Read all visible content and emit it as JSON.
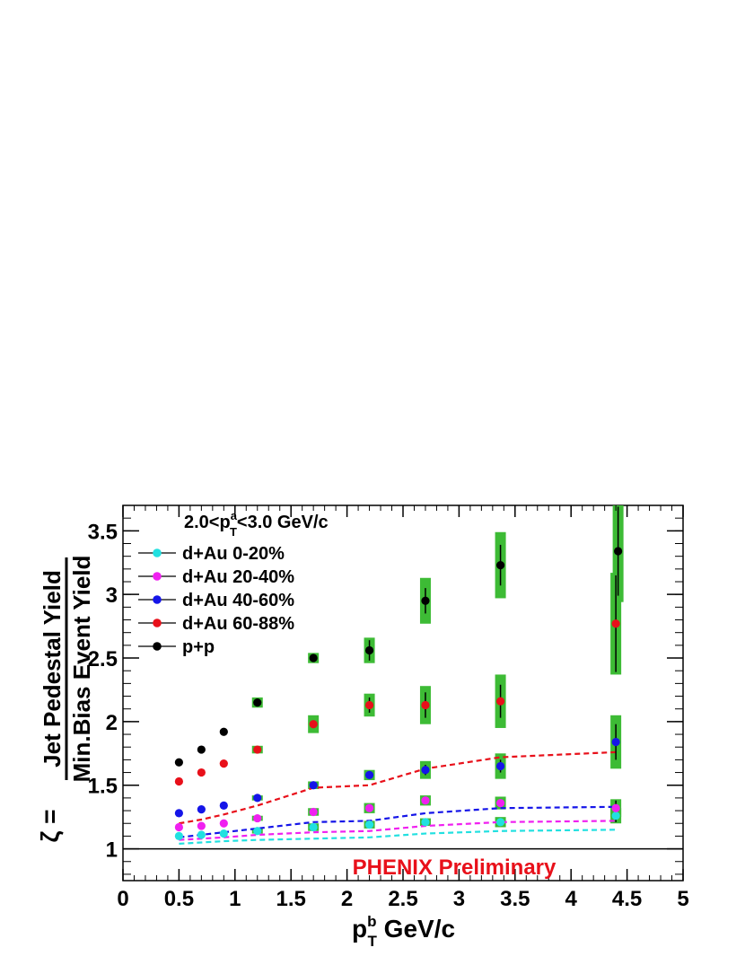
{
  "chart_data": {
    "type": "scatter",
    "title": "2.0<p_T^a<3.0 GeV/c",
    "title_parts": {
      "p": "2.0<p",
      "sup": "a",
      "sub": "T",
      "rest": "<3.0 GeV/c"
    },
    "xlabel": "p_T^b GeV/c",
    "xlabel_parts": {
      "p": "p",
      "sup": "b",
      "sub": "T",
      "rest": " GeV/c"
    },
    "ylabel": "ζ = Jet Pedestal Yield / Min.Bias Event Yield",
    "ylabel_parts": {
      "zeta": "ζ =",
      "numerator": "Jet Pedestal Yield",
      "denominator": "Min.Bias Event Yield"
    },
    "xlim": [
      0,
      5
    ],
    "ylim": [
      0.75,
      3.7
    ],
    "x_ticks": [
      "0",
      "0.5",
      "1",
      "1.5",
      "2",
      "2.5",
      "3",
      "3.5",
      "4",
      "4.5",
      "5"
    ],
    "y_ticks": [
      "1",
      "1.5",
      "2",
      "2.5",
      "3",
      "3.5"
    ],
    "reference_line_y": 1,
    "annotation": "PHENIX Preliminary",
    "legend_position": "top-left",
    "grid": false,
    "colors": {
      "systematic_box": "#3dbb35",
      "annotation": "#e8101a"
    },
    "series": [
      {
        "name": "d+Au 0-20%",
        "color": "#22e0e0",
        "x": [
          0.5,
          0.7,
          0.9,
          1.2,
          1.7,
          2.2,
          2.7,
          3.37,
          4.4
        ],
        "y": [
          1.1,
          1.11,
          1.12,
          1.14,
          1.17,
          1.19,
          1.21,
          1.21,
          1.26
        ],
        "err": [
          0.01,
          0.01,
          0.01,
          0.01,
          0.01,
          0.01,
          0.02,
          0.02,
          0.05
        ],
        "sys": [
          0,
          0,
          0,
          0.02,
          0.03,
          0.03,
          0.03,
          0.04,
          0.06
        ],
        "curve_y": [
          1.04,
          1.05,
          1.06,
          1.07,
          1.08,
          1.09,
          1.12,
          1.14,
          1.15
        ]
      },
      {
        "name": "d+Au 20-40%",
        "color": "#f020f0",
        "x": [
          0.5,
          0.7,
          0.9,
          1.2,
          1.7,
          2.2,
          2.7,
          3.37,
          4.4
        ],
        "y": [
          1.17,
          1.18,
          1.2,
          1.24,
          1.29,
          1.32,
          1.38,
          1.36,
          1.32
        ],
        "err": [
          0.01,
          0.01,
          0.01,
          0.01,
          0.01,
          0.02,
          0.02,
          0.03,
          0.06
        ],
        "sys": [
          0,
          0,
          0,
          0.02,
          0.03,
          0.04,
          0.04,
          0.05,
          0.07
        ],
        "curve_y": [
          1.07,
          1.08,
          1.09,
          1.11,
          1.13,
          1.14,
          1.18,
          1.21,
          1.22
        ]
      },
      {
        "name": "d+Au 40-60%",
        "color": "#1515e8",
        "x": [
          0.5,
          0.7,
          0.9,
          1.2,
          1.7,
          2.2,
          2.7,
          3.37,
          4.4
        ],
        "y": [
          1.28,
          1.31,
          1.34,
          1.4,
          1.5,
          1.58,
          1.62,
          1.65,
          1.84
        ],
        "err": [
          0.01,
          0.01,
          0.01,
          0.01,
          0.01,
          0.02,
          0.04,
          0.05,
          0.14
        ],
        "sys": [
          0,
          0,
          0,
          0.02,
          0.03,
          0.04,
          0.07,
          0.1,
          0.21
        ],
        "curve_y": [
          1.09,
          1.11,
          1.13,
          1.16,
          1.21,
          1.22,
          1.28,
          1.32,
          1.33
        ]
      },
      {
        "name": "d+Au 60-88%",
        "color": "#e8101a",
        "x": [
          0.5,
          0.7,
          0.9,
          1.2,
          1.7,
          2.2,
          2.7,
          3.37,
          4.4
        ],
        "y": [
          1.53,
          1.6,
          1.67,
          1.78,
          1.98,
          2.13,
          2.13,
          2.16,
          2.77
        ],
        "err": [
          0.01,
          0.01,
          0.01,
          0.02,
          0.03,
          0.06,
          0.1,
          0.13,
          0.38
        ],
        "sys": [
          0,
          0,
          0,
          0.03,
          0.07,
          0.09,
          0.15,
          0.21,
          0.4
        ],
        "curve_y": [
          1.2,
          1.23,
          1.27,
          1.34,
          1.48,
          1.5,
          1.63,
          1.72,
          1.76
        ]
      },
      {
        "name": "p+p",
        "color": "#000000",
        "x": [
          0.5,
          0.7,
          0.9,
          1.2,
          1.7,
          2.2,
          2.7,
          3.37,
          4.42
        ],
        "y": [
          1.68,
          1.78,
          1.92,
          2.15,
          2.5,
          2.56,
          2.95,
          3.23,
          3.34
        ],
        "err": [
          0.01,
          0.01,
          0.01,
          0.02,
          0.03,
          0.08,
          0.1,
          0.16,
          0.35
        ],
        "sys": [
          0,
          0,
          0,
          0.04,
          0.04,
          0.1,
          0.18,
          0.26,
          0.4
        ],
        "curve_y": []
      }
    ]
  }
}
